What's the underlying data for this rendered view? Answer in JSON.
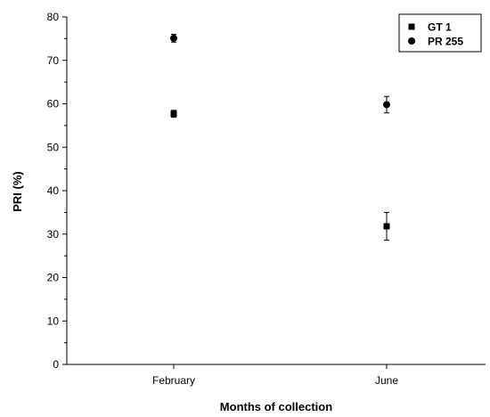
{
  "chart_data": {
    "type": "scatter",
    "categories": [
      "February",
      "June"
    ],
    "xlabel": "Months of collection",
    "ylabel": "PRI (%)",
    "ylim": [
      0,
      80
    ],
    "yticks": [
      0,
      10,
      20,
      30,
      40,
      50,
      60,
      70,
      80
    ],
    "grid": false,
    "legend_position": "top-right",
    "series": [
      {
        "name": "GT 1",
        "marker": "square",
        "values": [
          57.7,
          31.8
        ],
        "errors": [
          0.8,
          3.2
        ]
      },
      {
        "name": "PR 255",
        "marker": "circle",
        "values": [
          75.1,
          59.8
        ],
        "errors": [
          0.9,
          1.9
        ]
      }
    ]
  }
}
